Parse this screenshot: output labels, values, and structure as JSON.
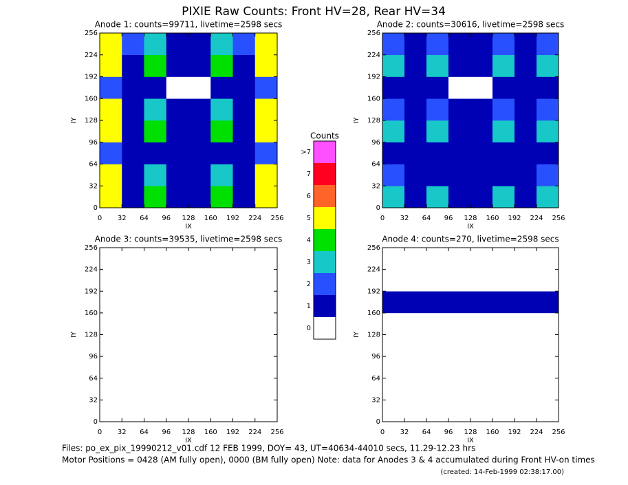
{
  "title": "PIXIE Raw Counts:  Front HV=28, Rear HV=34",
  "colorbar": {
    "title": "Counts",
    "ticks": [
      0,
      1,
      2,
      3,
      4,
      5,
      6,
      7,
      {
        "value": 8,
        "label": ">7"
      }
    ],
    "colors": [
      "#ffffff",
      "#0000b4",
      "#2850ff",
      "#18c8c8",
      "#00e000",
      "#ffff00",
      "#ff6428",
      "#ff0020",
      "#ff50ff"
    ]
  },
  "footer": [
    "Files: po_ex_pix_19990212_v01.cdf    12 FEB 1999, DOY= 43, UT=40634-44010 secs, 11.29-12.23 hrs",
    "Motor Positions = 0428 (AM fully open), 0000 (BM fully open)    Note: data for Anodes 3 & 4 accumulated during Front HV-on times",
    "(created: 14-Feb-1999 02:38:17.00)"
  ],
  "chart_data": [
    {
      "type": "heatmap",
      "title": "Anode 1: counts=99711, livetime=2598 secs",
      "xlabel": "IX",
      "ylabel": "IY",
      "xlim": [
        0,
        256
      ],
      "ylim": [
        0,
        256
      ],
      "xticks": [
        0,
        32,
        64,
        96,
        128,
        160,
        192,
        224,
        256
      ],
      "yticks": [
        0,
        32,
        64,
        96,
        128,
        160,
        192,
        224,
        256
      ],
      "x_bins": [
        0,
        32,
        64,
        96,
        128,
        160,
        192,
        224,
        256
      ],
      "y_bins": [
        0,
        32,
        64,
        96,
        128,
        160,
        192,
        224,
        256
      ],
      "z": [
        [
          5,
          1,
          4,
          1,
          1,
          4,
          1,
          5
        ],
        [
          5,
          1,
          3,
          1,
          1,
          3,
          1,
          5
        ],
        [
          2,
          1,
          1,
          1,
          1,
          1,
          1,
          2
        ],
        [
          5,
          1,
          4,
          1,
          1,
          4,
          1,
          5
        ],
        [
          5,
          1,
          3,
          1,
          1,
          3,
          1,
          5
        ],
        [
          2,
          1,
          1,
          0,
          0,
          1,
          1,
          2
        ],
        [
          5,
          1,
          4,
          1,
          1,
          4,
          1,
          5
        ],
        [
          5,
          2,
          3,
          1,
          1,
          3,
          2,
          5
        ]
      ]
    },
    {
      "type": "heatmap",
      "title": "Anode 2: counts=30616, livetime=2598 secs",
      "xlabel": "IX",
      "ylabel": "IY",
      "xlim": [
        0,
        256
      ],
      "ylim": [
        0,
        256
      ],
      "xticks": [
        0,
        32,
        64,
        96,
        128,
        160,
        192,
        224,
        256
      ],
      "yticks": [
        0,
        32,
        64,
        96,
        128,
        160,
        192,
        224,
        256
      ],
      "x_bins": [
        0,
        32,
        64,
        96,
        128,
        160,
        192,
        224,
        256
      ],
      "y_bins": [
        0,
        32,
        64,
        96,
        128,
        160,
        192,
        224,
        256
      ],
      "z": [
        [
          3,
          1,
          3,
          1,
          1,
          3,
          1,
          3
        ],
        [
          2,
          1,
          1,
          1,
          1,
          1,
          1,
          2
        ],
        [
          1,
          1,
          1,
          1,
          1,
          1,
          1,
          1
        ],
        [
          3,
          1,
          3,
          1,
          1,
          3,
          1,
          3
        ],
        [
          2,
          1,
          2,
          1,
          1,
          2,
          1,
          2
        ],
        [
          1,
          1,
          1,
          0,
          0,
          1,
          1,
          1
        ],
        [
          3,
          1,
          3,
          1,
          1,
          3,
          1,
          3
        ],
        [
          2,
          1,
          2,
          1,
          1,
          2,
          1,
          2
        ]
      ]
    },
    {
      "type": "heatmap",
      "title": "Anode 3: counts=39535, livetime=2598 secs",
      "xlabel": "IX",
      "ylabel": "IY",
      "xlim": [
        0,
        256
      ],
      "ylim": [
        0,
        256
      ],
      "xticks": [
        0,
        32,
        64,
        96,
        128,
        160,
        192,
        224,
        256
      ],
      "yticks": [
        0,
        32,
        64,
        96,
        128,
        160,
        192,
        224,
        256
      ],
      "x_bins": [
        0,
        32,
        64,
        96,
        128,
        160,
        192,
        224,
        256
      ],
      "y_bins": [
        0,
        32,
        64,
        96,
        128,
        160,
        192,
        224,
        256
      ],
      "z": [
        [
          0,
          0,
          0,
          0,
          0,
          0,
          0,
          0
        ],
        [
          0,
          0,
          0,
          0,
          0,
          0,
          0,
          0
        ],
        [
          0,
          0,
          0,
          0,
          0,
          0,
          0,
          0
        ],
        [
          0,
          0,
          0,
          0,
          0,
          0,
          0,
          0
        ],
        [
          0,
          0,
          0,
          0,
          0,
          0,
          0,
          0
        ],
        [
          0,
          0,
          0,
          0,
          0,
          0,
          0,
          0
        ],
        [
          0,
          0,
          0,
          0,
          0,
          0,
          0,
          0
        ],
        [
          0,
          0,
          0,
          0,
          0,
          0,
          0,
          0
        ]
      ]
    },
    {
      "type": "heatmap",
      "title": "Anode 4: counts=270, livetime=2598 secs",
      "xlabel": "IX",
      "ylabel": "IY",
      "xlim": [
        0,
        256
      ],
      "ylim": [
        0,
        256
      ],
      "xticks": [
        0,
        32,
        64,
        96,
        128,
        160,
        192,
        224,
        256
      ],
      "yticks": [
        0,
        32,
        64,
        96,
        128,
        160,
        192,
        224,
        256
      ],
      "x_bins": [
        0,
        32,
        64,
        96,
        128,
        160,
        192,
        224,
        256
      ],
      "y_bins": [
        0,
        32,
        64,
        96,
        128,
        160,
        192,
        224,
        256
      ],
      "z": [
        [
          0,
          0,
          0,
          0,
          0,
          0,
          0,
          0
        ],
        [
          0,
          0,
          0,
          0,
          0,
          0,
          0,
          0
        ],
        [
          0,
          0,
          0,
          0,
          0,
          0,
          0,
          0
        ],
        [
          0,
          0,
          0,
          0,
          0,
          0,
          0,
          0
        ],
        [
          0,
          0,
          0,
          0,
          0,
          0,
          0,
          0
        ],
        [
          1,
          1,
          1,
          1,
          1,
          1,
          1,
          1
        ],
        [
          0,
          0,
          0,
          0,
          0,
          0,
          0,
          0
        ],
        [
          0,
          0,
          0,
          0,
          0,
          0,
          0,
          0
        ]
      ]
    }
  ]
}
